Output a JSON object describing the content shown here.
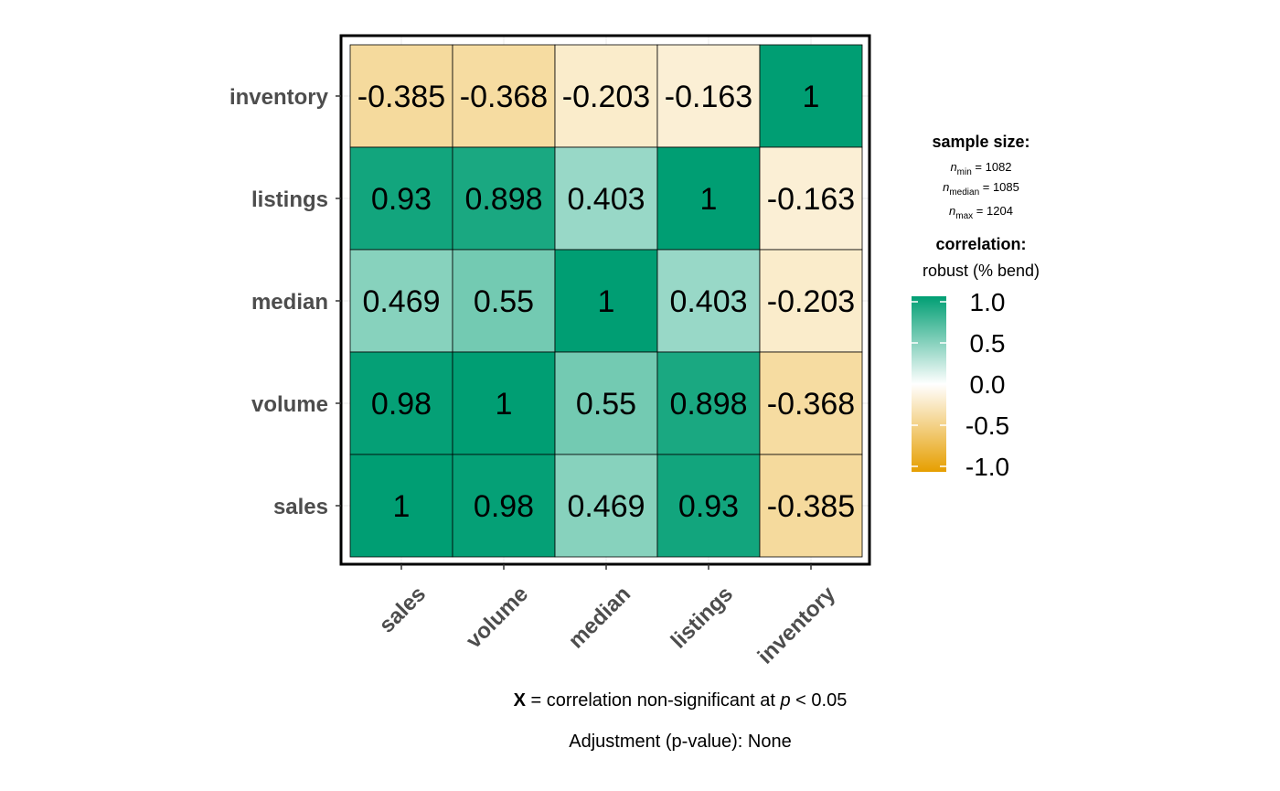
{
  "chart_data": {
    "type": "heatmap",
    "variables": [
      "sales",
      "volume",
      "median",
      "listings",
      "inventory"
    ],
    "matrix": [
      [
        1,
        0.98,
        0.469,
        0.93,
        -0.385
      ],
      [
        0.98,
        1,
        0.55,
        0.898,
        -0.368
      ],
      [
        0.469,
        0.55,
        1,
        0.403,
        -0.203
      ],
      [
        0.93,
        0.898,
        0.403,
        1,
        -0.163
      ],
      [
        -0.385,
        -0.368,
        -0.203,
        -0.163,
        1
      ]
    ],
    "labels": [
      [
        "1",
        "0.98",
        "0.469",
        "0.93",
        "-0.385"
      ],
      [
        "0.98",
        "1",
        "0.55",
        "0.898",
        "-0.368"
      ],
      [
        "0.469",
        "0.55",
        "1",
        "0.403",
        "-0.203"
      ],
      [
        "0.93",
        "0.898",
        "0.403",
        "1",
        "-0.163"
      ],
      [
        "-0.385",
        "-0.368",
        "-0.203",
        "-0.163",
        "1"
      ]
    ],
    "color_scale": {
      "low": "#E69F00",
      "mid": "#FFFFFF",
      "high": "#009E73",
      "range": [
        -1,
        1
      ]
    },
    "colorbar_ticks": [
      "1.0",
      "0.5",
      "0.0",
      "-0.5",
      "-1.0"
    ],
    "colorbar_values": [
      1.0,
      0.5,
      0.0,
      -0.5,
      -1.0
    ],
    "legend": {
      "sample_size_title": "sample size:",
      "n_min": {
        "var": "n",
        "sub": "min",
        "value": " = 1082"
      },
      "n_median": {
        "var": "n",
        "sub": "median",
        "value": " = 1085"
      },
      "n_max": {
        "var": "n",
        "sub": "max",
        "value": " = 1204"
      },
      "correlation_title": "correlation:",
      "correlation_type": "robust (% bend)"
    },
    "caption": {
      "x_mark": "X",
      "text_before": " = correlation non-significant at ",
      "p": "p",
      "text_after": " < 0.05",
      "adjustment": "Adjustment (p-value): None"
    },
    "grid": true,
    "legend_position": "right"
  }
}
